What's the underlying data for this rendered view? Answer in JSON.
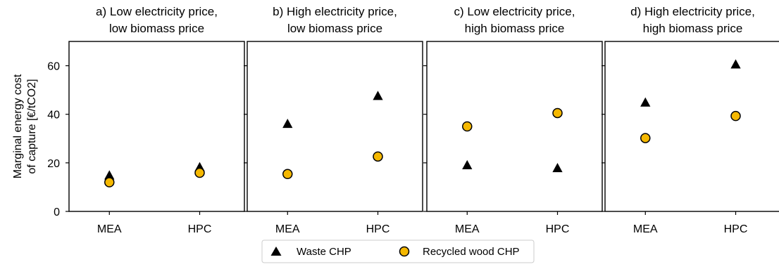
{
  "chart_data": {
    "type": "scatter",
    "ylabel_lines": [
      "Marginal energy cost",
      "of capture [€/tCO2]"
    ],
    "categories": [
      "MEA",
      "HPC"
    ],
    "ylim": [
      0,
      70
    ],
    "yticks": [
      0,
      20,
      40,
      60
    ],
    "grid": false,
    "legend_position": "bottom-center",
    "colors": {
      "waste": "#000000",
      "wood_fill": "#f5b800",
      "wood_edge": "#000000"
    },
    "series_labels": [
      "Waste CHP",
      "Recycled wood CHP"
    ],
    "panels": [
      {
        "title_lines": [
          "a) Low electricity price,",
          "low biomass price"
        ],
        "series": [
          {
            "name": "Waste CHP",
            "marker": "triangle",
            "values": [
              14.8,
              18.2
            ]
          },
          {
            "name": "Recycled wood CHP",
            "marker": "circle",
            "values": [
              12.0,
              15.9
            ]
          }
        ]
      },
      {
        "title_lines": [
          "b) High electricity price,",
          "low biomass price"
        ],
        "series": [
          {
            "name": "Waste CHP",
            "marker": "triangle",
            "values": [
              36.0,
              47.5
            ]
          },
          {
            "name": "Recycled wood CHP",
            "marker": "circle",
            "values": [
              15.4,
              22.6
            ]
          }
        ]
      },
      {
        "title_lines": [
          "c) Low electricity price,",
          "high biomass price"
        ],
        "series": [
          {
            "name": "Waste CHP",
            "marker": "triangle",
            "values": [
              19.0,
              17.8
            ]
          },
          {
            "name": "Recycled wood CHP",
            "marker": "circle",
            "values": [
              35.0,
              40.5
            ]
          }
        ]
      },
      {
        "title_lines": [
          "d) High electricity price,",
          "high biomass price"
        ],
        "series": [
          {
            "name": "Waste CHP",
            "marker": "triangle",
            "values": [
              44.8,
              60.5
            ]
          },
          {
            "name": "Recycled wood CHP",
            "marker": "circle",
            "values": [
              30.2,
              39.3
            ]
          }
        ]
      }
    ]
  }
}
